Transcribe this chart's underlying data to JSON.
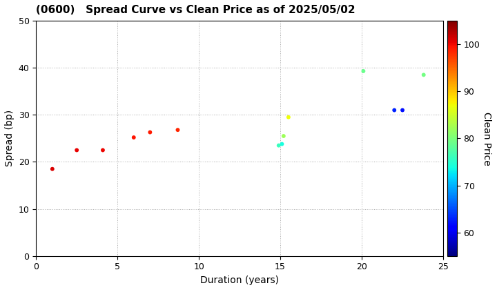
{
  "title": "(0600)   Spread Curve vs Clean Price as of 2025/05/02",
  "xlabel": "Duration (years)",
  "ylabel": "Spread (bp)",
  "colorbar_label": "Clean Price",
  "xlim": [
    0,
    25
  ],
  "ylim": [
    0,
    50
  ],
  "xticks": [
    0,
    5,
    10,
    15,
    20,
    25
  ],
  "yticks": [
    0,
    10,
    20,
    30,
    40,
    50
  ],
  "colorbar_ticks": [
    60,
    70,
    80,
    90,
    100
  ],
  "cmap": "jet",
  "clim": [
    55,
    105
  ],
  "points": [
    {
      "duration": 1.0,
      "spread": 18.5,
      "price": 101.0
    },
    {
      "duration": 2.5,
      "spread": 22.5,
      "price": 100.5
    },
    {
      "duration": 4.1,
      "spread": 22.5,
      "price": 100.3
    },
    {
      "duration": 6.0,
      "spread": 25.2,
      "price": 99.5
    },
    {
      "duration": 7.0,
      "spread": 26.3,
      "price": 99.0
    },
    {
      "duration": 8.7,
      "spread": 26.8,
      "price": 98.5
    },
    {
      "duration": 14.9,
      "spread": 23.5,
      "price": 76.0
    },
    {
      "duration": 15.1,
      "spread": 23.8,
      "price": 74.0
    },
    {
      "duration": 15.2,
      "spread": 25.5,
      "price": 82.0
    },
    {
      "duration": 15.5,
      "spread": 29.5,
      "price": 87.0
    },
    {
      "duration": 20.1,
      "spread": 39.3,
      "price": 79.0
    },
    {
      "duration": 22.0,
      "spread": 31.0,
      "price": 63.0
    },
    {
      "duration": 22.5,
      "spread": 31.0,
      "price": 62.0
    },
    {
      "duration": 23.8,
      "spread": 38.5,
      "price": 79.5
    }
  ],
  "marker_size": 18,
  "background_color": "#ffffff",
  "grid_color": "#aaaaaa",
  "title_fontsize": 11,
  "axis_fontsize": 10,
  "tick_fontsize": 9
}
